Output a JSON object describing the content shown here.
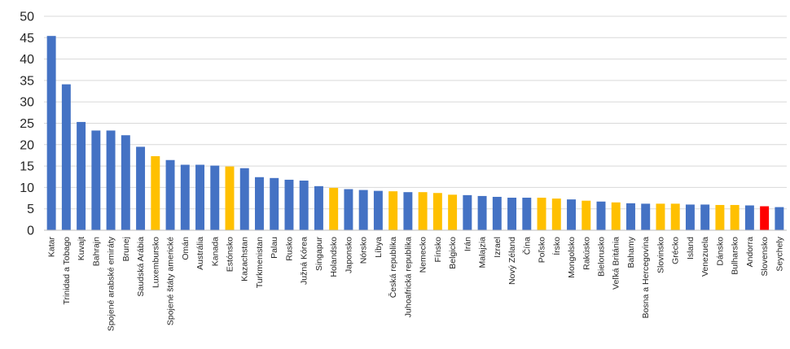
{
  "chart_data": {
    "type": "bar",
    "title": "",
    "xlabel": "",
    "ylabel": "",
    "ylim": [
      0,
      50
    ],
    "yticks": [
      0,
      5,
      10,
      15,
      20,
      25,
      30,
      35,
      40,
      45,
      50
    ],
    "grid": true,
    "legend": "none",
    "colors": {
      "default": "#4472C4",
      "highlight": "#FFC000",
      "emphasis": "#FF0000"
    },
    "categories": [
      "Katar",
      "Trinidad a Tobago",
      "Kuvajt",
      "Bahrajn",
      "Spojené arabské emiráty",
      "Brunej",
      "Saudská Arábia",
      "Luxembursko",
      "Spojené štáty americké",
      "Omán",
      "Austrália",
      "Kanada",
      "Estónsko",
      "Kazachstan",
      "Turkmenistan",
      "Palau",
      "Rusko",
      "Južná Kórea",
      "Singapur",
      "Holandsko",
      "Japonsko",
      "Nórsko",
      "Líbya",
      "Česká republika",
      "Juhoafrická republika",
      "Nemecko",
      "Fínsko",
      "Belgicko",
      "Irán",
      "Malajzia",
      "Izrael",
      "Nový Zéland",
      "Čína",
      "Poľsko",
      "Írsko",
      "Mongolsko",
      "Rakúsko",
      "Bielorusko",
      "Veľká Británia",
      "Bahamy",
      "Bosna a Hercegovina",
      "Slovinsko",
      "Grécko",
      "Island",
      "Venezuela",
      "Dánsko",
      "Bulharsko",
      "Andorra",
      "Slovensko",
      "Seychely"
    ],
    "values": [
      45.4,
      34.1,
      25.3,
      23.3,
      23.3,
      22.2,
      19.5,
      17.3,
      16.4,
      15.3,
      15.3,
      15.1,
      14.9,
      14.5,
      12.4,
      12.2,
      11.8,
      11.6,
      10.3,
      9.9,
      9.6,
      9.4,
      9.2,
      9.1,
      8.9,
      8.9,
      8.7,
      8.3,
      8.2,
      8.0,
      7.8,
      7.6,
      7.6,
      7.6,
      7.4,
      7.2,
      6.9,
      6.7,
      6.5,
      6.3,
      6.2,
      6.2,
      6.2,
      6.0,
      6.0,
      5.9,
      5.9,
      5.8,
      5.6,
      5.4
    ],
    "bar_colors": [
      "#4472C4",
      "#4472C4",
      "#4472C4",
      "#4472C4",
      "#4472C4",
      "#4472C4",
      "#4472C4",
      "#FFC000",
      "#4472C4",
      "#4472C4",
      "#4472C4",
      "#4472C4",
      "#FFC000",
      "#4472C4",
      "#4472C4",
      "#4472C4",
      "#4472C4",
      "#4472C4",
      "#4472C4",
      "#FFC000",
      "#4472C4",
      "#4472C4",
      "#4472C4",
      "#FFC000",
      "#4472C4",
      "#FFC000",
      "#FFC000",
      "#FFC000",
      "#4472C4",
      "#4472C4",
      "#4472C4",
      "#4472C4",
      "#4472C4",
      "#FFC000",
      "#FFC000",
      "#4472C4",
      "#FFC000",
      "#4472C4",
      "#FFC000",
      "#4472C4",
      "#4472C4",
      "#FFC000",
      "#FFC000",
      "#4472C4",
      "#4472C4",
      "#FFC000",
      "#FFC000",
      "#4472C4",
      "#FF0000",
      "#4472C4"
    ]
  }
}
